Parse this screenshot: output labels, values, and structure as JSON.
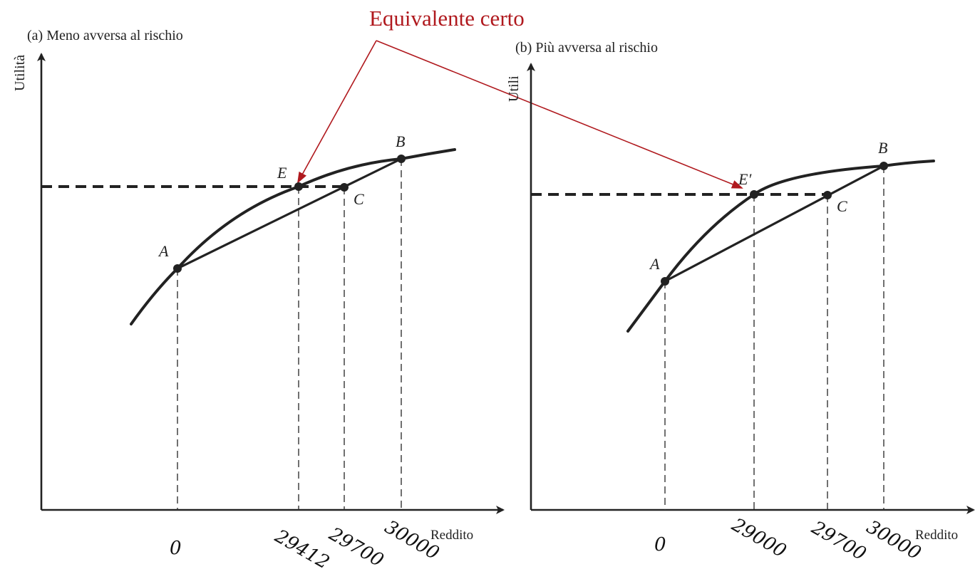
{
  "callout": {
    "label": "Equivalente certo",
    "color": "#b0191e"
  },
  "panels": [
    {
      "title": "(a) Meno avversa al rischio",
      "ylabel": "Utilità",
      "xlabel": "Reddito",
      "points": {
        "A": "A",
        "B": "B",
        "C": "C",
        "E": "E"
      },
      "ticks": [
        "0",
        "29412",
        "29700",
        "30000"
      ]
    },
    {
      "title": "(b) Più avversa al rischio",
      "ylabel": "Utilità",
      "xlabel": "Reddito",
      "points": {
        "A": "A",
        "B": "B",
        "C": "C",
        "E": "E′"
      },
      "ticks": [
        "0",
        "29000",
        "29700",
        "30000"
      ]
    }
  ]
}
